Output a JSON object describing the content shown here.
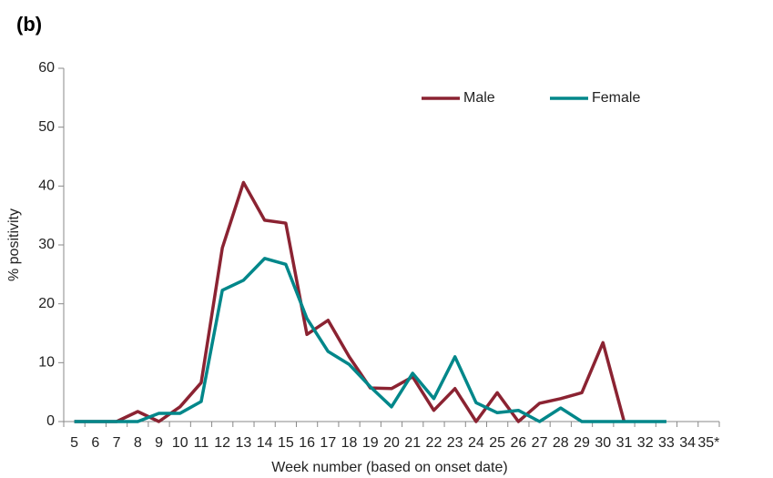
{
  "chart_data": {
    "type": "line",
    "title": "(b)",
    "x_label": "Week number (based on onset date)",
    "y_label": "% positivity",
    "categories": [
      "5",
      "6",
      "7",
      "8",
      "9",
      "10",
      "11",
      "12",
      "13",
      "14",
      "15",
      "16",
      "17",
      "18",
      "19",
      "20",
      "21",
      "22",
      "23",
      "24",
      "25",
      "26",
      "27",
      "28",
      "29",
      "30",
      "31",
      "32",
      "33",
      "34",
      "35*"
    ],
    "series": [
      {
        "name": "Male",
        "color": "#8b2332",
        "values": [
          0,
          0,
          0,
          1.7,
          0,
          2.5,
          6.6,
          29.5,
          40.6,
          34.2,
          33.7,
          14.8,
          17.2,
          11,
          5.7,
          5.6,
          7.6,
          1.9,
          5.6,
          0,
          4.9,
          0,
          3.1,
          3.9,
          4.9,
          13.4,
          0,
          null,
          null,
          null,
          null
        ]
      },
      {
        "name": "Female",
        "color": "#00878a",
        "values": [
          0,
          0,
          0,
          0,
          1.4,
          1.4,
          3.4,
          22.3,
          24,
          27.7,
          26.7,
          17.5,
          11.9,
          9.7,
          5.9,
          2.5,
          8.2,
          3.9,
          11,
          3.2,
          1.5,
          1.9,
          0,
          2.3,
          0,
          0,
          0,
          0,
          0,
          null,
          null
        ]
      }
    ],
    "ylim": [
      0,
      60
    ],
    "yticks": [
      0,
      10,
      20,
      30,
      40,
      50,
      60
    ],
    "grid": false,
    "legend": "top"
  }
}
